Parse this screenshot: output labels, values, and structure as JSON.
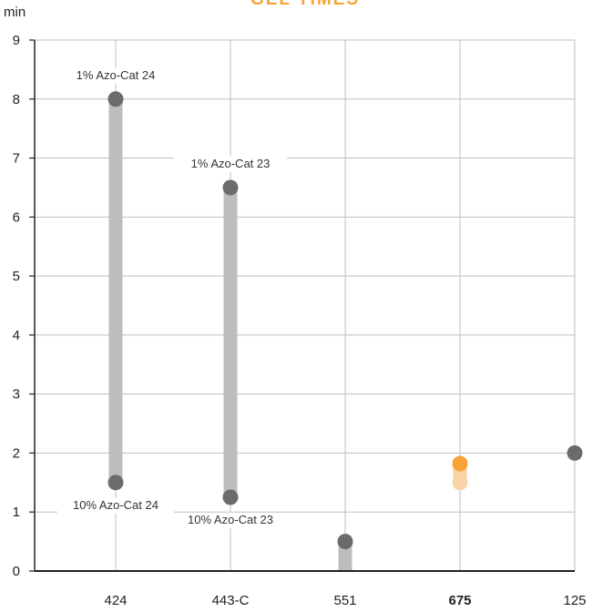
{
  "chart_data": {
    "type": "range-dot",
    "title": "GEL TIMES",
    "ylabel": "min",
    "xlabel": "",
    "ylim": [
      0,
      9
    ],
    "yticks": [
      0,
      1,
      2,
      3,
      4,
      5,
      6,
      7,
      8,
      9
    ],
    "grid": true,
    "categories": [
      "424",
      "443-C",
      "551",
      "675",
      "125"
    ],
    "highlight_category": "675",
    "ranges": [
      {
        "category": "424",
        "high": 8.0,
        "low": 1.5,
        "high_label": "1% Azo-Cat 24",
        "low_label": "10% Azo-Cat 24"
      },
      {
        "category": "443-C",
        "high": 6.5,
        "low": 1.25,
        "high_label": "1% Azo-Cat 23",
        "low_label": "10% Azo-Cat 23"
      },
      {
        "category": "551",
        "high": 0.5,
        "low": 0.0
      },
      {
        "category": "675",
        "high": 1.82,
        "low": 1.5
      },
      {
        "category": "125",
        "high": 2.0,
        "low": 2.0
      }
    ],
    "colors": {
      "bar": "#bdbdbd",
      "dot": "#6b6b6b",
      "highlight_dot": "#f6a436",
      "highlight_bar": "#f9d3a6",
      "title": "#f6a436",
      "grid": "#bfbfbf",
      "axis": "#222222"
    }
  }
}
